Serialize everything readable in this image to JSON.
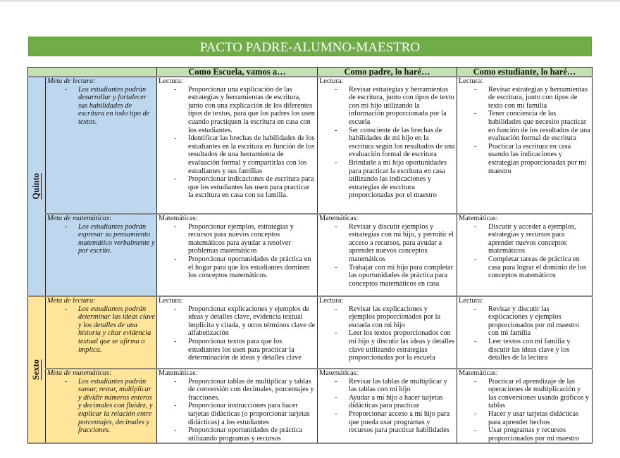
{
  "title": "PACTO PADRE-ALUMNO-MAESTRO",
  "colors": {
    "title_bg": "#70ad47",
    "header_bg": "#c5e0b3",
    "quinto_bg": "#bdd7ee",
    "sexto_bg": "#ffe599"
  },
  "headers": [
    "",
    "",
    "Como Escuela, vamos a…",
    "Como padre, lo haré…",
    "Como estudiante, lo haré…"
  ],
  "grades": [
    {
      "name": "Quinto",
      "rows": [
        {
          "goal_label": "Meta de lectura:",
          "goal_items": [
            "Los estudiantes podrán desarrollar y fortalecer sus habilidades de escritura en todo tipo de textos."
          ],
          "cells": [
            {
              "label": "Lectura:",
              "items": [
                "Proporcionar una explicación de las estrategias y herramientas de escritura, junto con una explicación de los diferentes tipos de textos, para que los padres los usen cuando practiquen la escritura en casa con los estudiantes.",
                "Identificar las brechas de habilidades de los estudiantes en la escritura en función de los resultados de una herramienta de evaluación formal y compartirlas con los estudiantes y sus familias",
                "Proporcionar indicaciones de escritura para que los estudiantes las usen para practicar la escritura en casa con su familia."
              ]
            },
            {
              "label": "Lectura:",
              "items": [
                "Revisar estrategias y herramientas de escritura, junto con tipos de texto con mi hijo utilizando la información proporcionada por la escuela",
                "Ser consciente de las brechas de habilidades de mi hijo en la escritura según los resultados de una evaluación formal de escritura",
                "Brindarle a mi hijo oportunidades para practicar la escritura en casa utilizando las indicaciones y estrategias de escritura proporcionadas por el maestro"
              ]
            },
            {
              "label": "Lectura:",
              "items": [
                "Revisar estrategias y herramientas de escritura, junto con tipos de texto con mi familia",
                "Tener conciencia de las habilidades que necesito practicar en función de los resultados de una evaluación formal de escritura",
                "Practicar la escritura en casa usando las indicaciones y estrategias proporcionadas por mi maestro"
              ]
            }
          ]
        },
        {
          "goal_label": "Meta de matemáticas:",
          "goal_items": [
            "Los estudiantes podrán expresar su pensamiento matemático verbalmente y por escrito."
          ],
          "cells": [
            {
              "label": "Matemáticas:",
              "items": [
                "Proporcionar ejemplos, estrategias y recursos para nuevos conceptos matemáticos para ayudar a resolver problemas matemáticos",
                "Proporcionar oportunidades de práctica en el hogar para que los estudiantes dominen los conceptos matemáticos."
              ]
            },
            {
              "label": "Matemáticas:",
              "items": [
                "Revisar y discutir ejemplos y estrategias con mi hijo, y permitir el acceso a recursos, para ayudar a aprender nuevos conceptos matemáticos",
                "Trabajar con mi hijo para completar las oportunidades de práctica para conceptos matemáticos en casa"
              ]
            },
            {
              "label": "Matemáticas:",
              "items": [
                "Discutir y acceder a ejemplos, estrategias y recursos para aprender nuevos conceptos matemáticos",
                "Completar tareas de práctica en casa para lograr el dominio de los conceptos matemáticos"
              ]
            }
          ]
        }
      ]
    },
    {
      "name": "Sexto",
      "rows": [
        {
          "goal_label": "Meta de lectura:",
          "goal_items": [
            "Los estudiantes podrán determinar las ideas clave y los detalles de una historia y citar evidencia textual que se afirma o implica."
          ],
          "cells": [
            {
              "label": "Lectura:",
              "items": [
                "Proporcionar explicaciones y ejemplos de ideas y detalles clave, evidencia textual implícita y citada, y otros términos clave de alfabetización",
                "Proporcionar textos para que los estudiantes los usen para practicar la determinación de ideas y detalles clave"
              ]
            },
            {
              "label": "Lectura:",
              "items": [
                "Revisar las explicaciones y ejemplos proporcionados por la escuela con mi hijo",
                "Leer los textos proporcionados con mi hijo y discutir las ideas y detalles clave utilizando estrategias proporcionadas por la escuela"
              ]
            },
            {
              "label": "Lectura:",
              "items": [
                "Revisar y discutir las explicaciones y ejemplos proporcionados por mi maestro con mi familia",
                "Leer textos con mi familia y discutir las ideas clave y los detalles de la lectura"
              ]
            }
          ]
        },
        {
          "goal_label": "Meta de matemáticas:",
          "goal_items": [
            "Los estudiantes podrán sumar, restar, multiplicar y dividir números enteros y decimales con fluidez, y explicar la relación entre porcentajes, decimales y fracciones."
          ],
          "cells": [
            {
              "label": "Matemáticas:",
              "items": [
                "Proporcionar tablas de multiplicar y tablas de conversión con decimales, porcentajes y fracciones.",
                "Proporcionar instrucciones para hacer tarjetas didácticas (o proporcionar tarjetas didácticas) a los estudiantes",
                "Proporcionar oportunidades de práctica utilizando programas y recursos"
              ]
            },
            {
              "label": "Matemáticas:",
              "items": [
                "Revisar las tablas de multiplicar y las tablas con mi hijo",
                "Ayudar a mi hijo a hacer tarjetas didácticas para practicar",
                "Proporcionar acceso a mi hijo para que pueda usar programas y recursos para practicar habilidades"
              ]
            },
            {
              "label": "Matemáticas:",
              "items": [
                "Practicar el aprendizaje de las operaciones de multiplicación y las conversiones usando gráficos y tablas",
                "Hacer y usar tarjetas didácticas para aprender hechos",
                "Usar programas y recursos proporcionados por mi maestro"
              ]
            }
          ]
        }
      ]
    }
  ]
}
